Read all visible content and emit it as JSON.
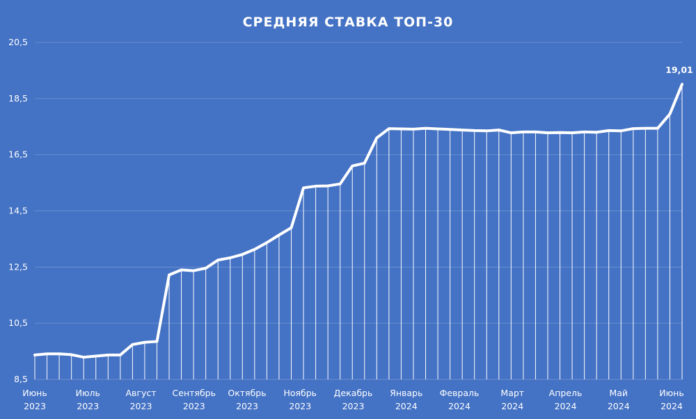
{
  "chart_data": {
    "type": "line",
    "title": "СРЕДНЯЯ СТАВКА ТОП-30",
    "ylim": [
      8.5,
      20.5
    ],
    "yticks": [
      "8,5",
      "10,5",
      "12,5",
      "14,5",
      "16,5",
      "18,5",
      "20,5"
    ],
    "grid": true,
    "drop_lines": true,
    "x_month_labels": [
      {
        "month": "Июнь",
        "year": "2023"
      },
      {
        "month": "Июль",
        "year": "2023"
      },
      {
        "month": "Август",
        "year": "2023"
      },
      {
        "month": "Сентябрь",
        "year": "2023"
      },
      {
        "month": "Октябрь",
        "year": "2023"
      },
      {
        "month": "Ноябрь",
        "year": "2023"
      },
      {
        "month": "Декабрь",
        "year": "2023"
      },
      {
        "month": "Январь",
        "year": "2024"
      },
      {
        "month": "Февраль",
        "year": "2024"
      },
      {
        "month": "Март",
        "year": "2024"
      },
      {
        "month": "Апрель",
        "year": "2024"
      },
      {
        "month": "Май",
        "year": "2024"
      },
      {
        "month": "Июнь",
        "year": "2024"
      }
    ],
    "values": [
      9.37,
      9.41,
      9.41,
      9.38,
      9.29,
      9.33,
      9.37,
      9.37,
      9.74,
      9.82,
      9.85,
      12.22,
      12.4,
      12.37,
      12.46,
      12.75,
      12.83,
      12.95,
      13.13,
      13.37,
      13.64,
      13.9,
      15.32,
      15.38,
      15.39,
      15.46,
      16.1,
      16.2,
      17.1,
      17.43,
      17.42,
      17.41,
      17.44,
      17.42,
      17.4,
      17.38,
      17.36,
      17.35,
      17.38,
      17.28,
      17.31,
      17.31,
      17.28,
      17.29,
      17.28,
      17.31,
      17.3,
      17.36,
      17.35,
      17.43,
      17.44,
      17.44,
      17.95,
      19.01
    ],
    "data_labels": [
      {
        "index": 53,
        "text": "19,01"
      }
    ],
    "colors": {
      "background": "#4472C4",
      "line": "#ffffff",
      "grid": "#6b8fd1"
    }
  }
}
